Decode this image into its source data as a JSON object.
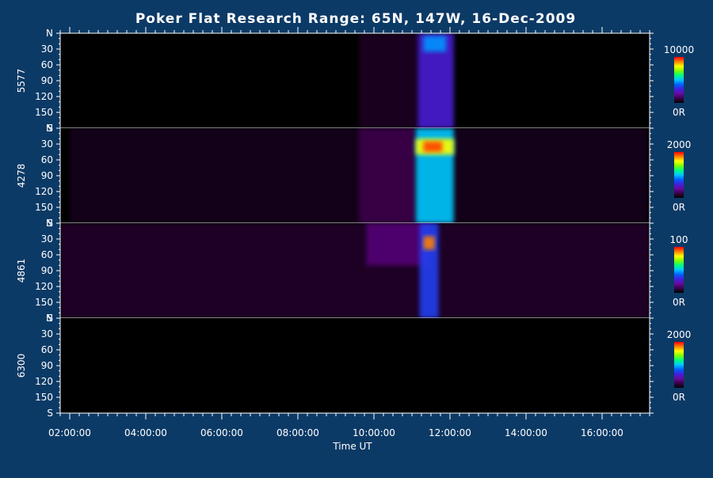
{
  "chart_data": {
    "type": "heatmap",
    "title": "Poker Flat Research Range: 65N, 147W, 16-Dec-2009",
    "xlabel": "Time UT",
    "x_ticks": [
      "02:00:00",
      "04:00:00",
      "06:00:00",
      "08:00:00",
      "10:00:00",
      "12:00:00",
      "14:00:00",
      "16:00:00"
    ],
    "x_tick_hours": [
      2,
      4,
      6,
      8,
      10,
      12,
      14,
      16
    ],
    "x_range_hours": [
      1.75,
      17.25
    ],
    "y_ticks": [
      "N",
      "30",
      "60",
      "90",
      "120",
      "150",
      "S"
    ],
    "y_tick_degrees": [
      0,
      30,
      60,
      90,
      120,
      150,
      180
    ],
    "y_range_degrees": [
      0,
      180
    ],
    "panels": [
      {
        "ylabel": "5577",
        "colorbar_max": "10000",
        "colorbar_min": "0R",
        "features": [
          {
            "t_start": 11.15,
            "t_end": 12.1,
            "el_start": 0,
            "el_end": 180,
            "intensity": 0.28
          },
          {
            "t_start": 11.3,
            "t_end": 11.9,
            "el_start": 5,
            "el_end": 35,
            "intensity": 0.45
          },
          {
            "t_start": 9.6,
            "t_end": 11.15,
            "el_start": 0,
            "el_end": 180,
            "intensity": 0.05
          }
        ]
      },
      {
        "ylabel": "4278",
        "colorbar_max": "2000",
        "colorbar_min": "0R",
        "features": [
          {
            "t_start": 11.1,
            "t_end": 12.1,
            "el_start": 0,
            "el_end": 180,
            "intensity": 0.5
          },
          {
            "t_start": 11.1,
            "t_end": 12.1,
            "el_start": 20,
            "el_end": 50,
            "intensity": 0.8
          },
          {
            "t_start": 11.3,
            "t_end": 11.8,
            "el_start": 25,
            "el_end": 45,
            "intensity": 0.95
          },
          {
            "t_start": 9.6,
            "t_end": 11.1,
            "el_start": 0,
            "el_end": 180,
            "intensity": 0.1
          },
          {
            "t_start": 2.0,
            "t_end": 17.2,
            "el_start": 0,
            "el_end": 180,
            "intensity": 0.04
          }
        ]
      },
      {
        "ylabel": "4861",
        "colorbar_max": "100",
        "colorbar_min": "0R",
        "features": [
          {
            "t_start": 11.2,
            "t_end": 11.7,
            "el_start": 0,
            "el_end": 180,
            "intensity": 0.35
          },
          {
            "t_start": 11.3,
            "t_end": 11.6,
            "el_start": 25,
            "el_end": 50,
            "intensity": 0.9
          },
          {
            "t_start": 9.8,
            "t_end": 11.5,
            "el_start": 0,
            "el_end": 80,
            "intensity": 0.15
          },
          {
            "t_start": 1.75,
            "t_end": 17.25,
            "el_start": 0,
            "el_end": 180,
            "intensity": 0.06
          }
        ]
      },
      {
        "ylabel": "6300",
        "colorbar_max": "2000",
        "colorbar_min": "0R",
        "features": []
      }
    ]
  },
  "colors": {
    "background": "#0c3a66",
    "plot_background": "#000000",
    "axis": "#ffffff",
    "separator": "#ffffff"
  },
  "colorscale": [
    "#000000",
    "#3a0048",
    "#6a0aa0",
    "#4020e0",
    "#0060ff",
    "#00c8ff",
    "#00ff80",
    "#80ff00",
    "#ffff00",
    "#ff8000",
    "#ff0000"
  ]
}
